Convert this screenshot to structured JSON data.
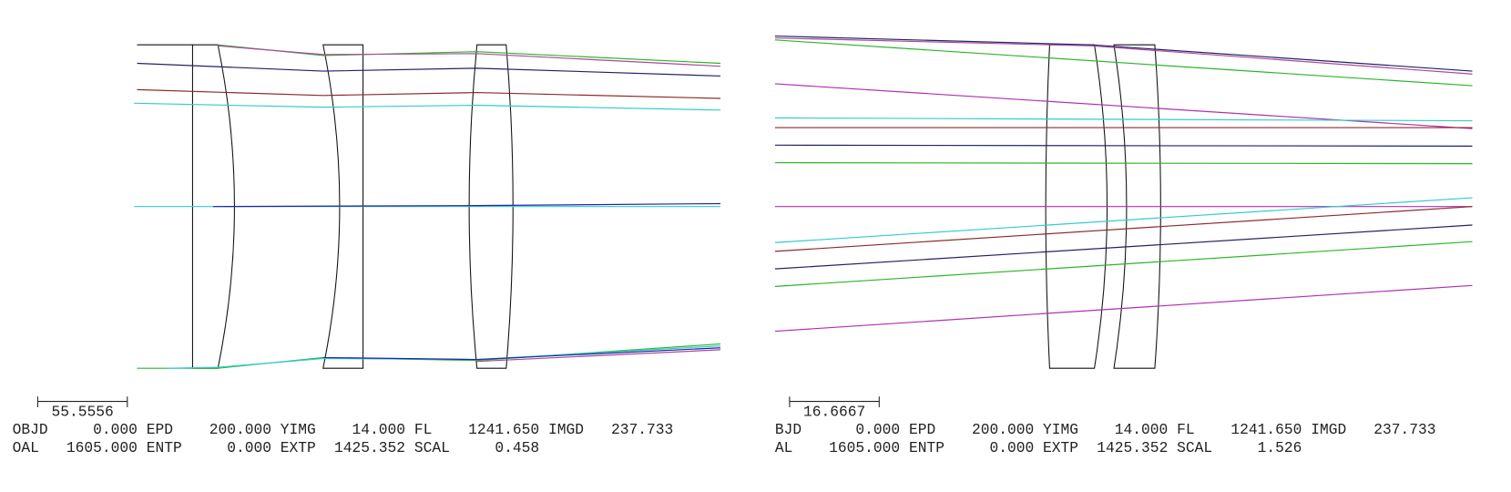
{
  "panels": [
    {
      "scale_bar": "55.5556",
      "rows": [
        [
          {
            "label": "OBJD",
            "value": "0.000"
          },
          {
            "label": "EPD",
            "value": "200.000"
          },
          {
            "label": "YIMG",
            "value": "14.000"
          },
          {
            "label": "FL",
            "value": "1241.650"
          },
          {
            "label": "IMGD",
            "value": "237.733"
          }
        ],
        [
          {
            "label": "OAL",
            "value": "1605.000"
          },
          {
            "label": "ENTP",
            "value": "0.000"
          },
          {
            "label": "EXTP",
            "value": "1425.352"
          },
          {
            "label": "SCAL",
            "value": "0.458"
          }
        ]
      ]
    },
    {
      "scale_bar": "16.6667",
      "rows": [
        [
          {
            "label": "BJD",
            "value": "0.000"
          },
          {
            "label": "EPD",
            "value": "200.000"
          },
          {
            "label": "YIMG",
            "value": "14.000"
          },
          {
            "label": "FL",
            "value": "1241.650"
          },
          {
            "label": "IMGD",
            "value": "237.733"
          }
        ],
        [
          {
            "label": "AL",
            "value": "1605.000"
          },
          {
            "label": "ENTP",
            "value": "0.000"
          },
          {
            "label": "EXTP",
            "value": "1425.352"
          },
          {
            "label": "SCAL",
            "value": "1.526"
          }
        ]
      ]
    }
  ]
}
